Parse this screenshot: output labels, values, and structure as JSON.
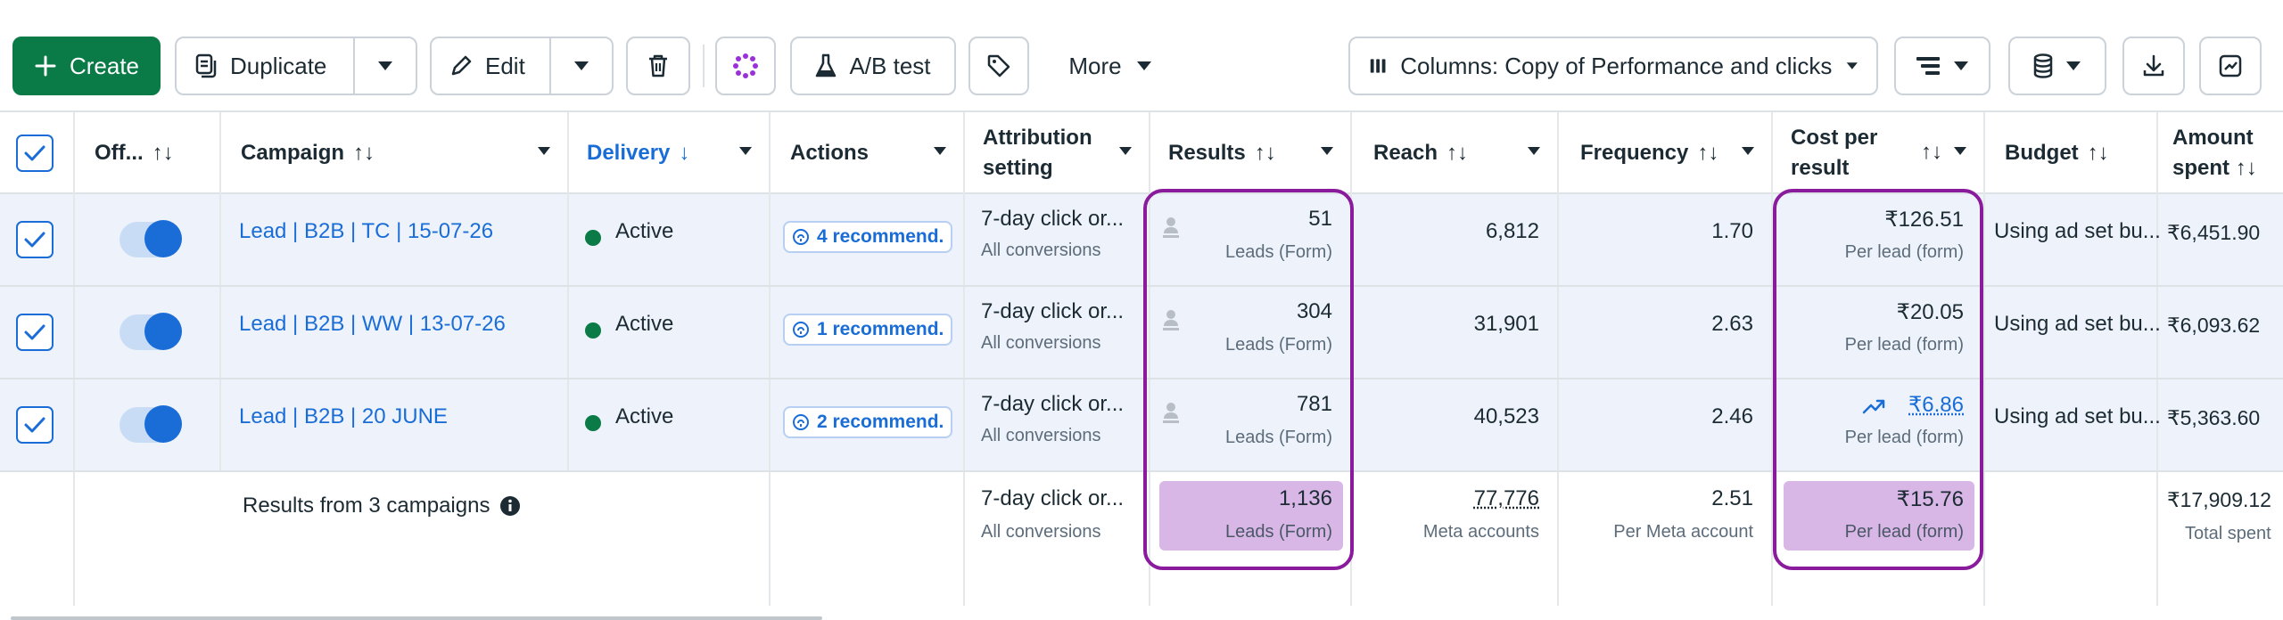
{
  "toolbar": {
    "create_label": "Create",
    "duplicate_label": "Duplicate",
    "edit_label": "Edit",
    "ab_test_label": "A/B test",
    "more_label": "More",
    "columns_label": "Columns: Copy of Performance and clicks"
  },
  "header": {
    "off": "Off...",
    "campaign": "Campaign",
    "delivery": "Delivery",
    "actions": "Actions",
    "attribution_line1": "Attribution",
    "attribution_line2": "setting",
    "results": "Results",
    "reach": "Reach",
    "frequency": "Frequency",
    "cost_line1": "Cost per",
    "cost_line2": "result",
    "budget": "Budget",
    "amount_line1": "Amount",
    "amount_line2": "spent",
    "sort_arrows": "↑↓",
    "delivery_arrow": "↓"
  },
  "rows": [
    {
      "campaign": "Lead | B2B | TC | 15-07-26",
      "delivery": "Active",
      "actions": "4 recommend.",
      "attribution": "7-day click or...",
      "attribution_sub": "All conversions",
      "results": "51",
      "results_sub": "Leads (Form)",
      "reach": "6,812",
      "frequency": "1.70",
      "cost": "₹126.51",
      "cost_sub": "Per lead (form)",
      "budget": "Using ad set bu...",
      "amount": "₹6,451.90"
    },
    {
      "campaign": "Lead | B2B | WW | 13-07-26",
      "delivery": "Active",
      "actions": "1 recommend.",
      "attribution": "7-day click or...",
      "attribution_sub": "All conversions",
      "results": "304",
      "results_sub": "Leads (Form)",
      "reach": "31,901",
      "frequency": "2.63",
      "cost": "₹20.05",
      "cost_sub": "Per lead (form)",
      "budget": "Using ad set bu...",
      "amount": "₹6,093.62"
    },
    {
      "campaign": "Lead | B2B | 20 JUNE",
      "delivery": "Active",
      "actions": "2 recommend.",
      "attribution": "7-day click or...",
      "attribution_sub": "All conversions",
      "results": "781",
      "results_sub": "Leads (Form)",
      "reach": "40,523",
      "frequency": "2.46",
      "cost": "₹6.86",
      "cost_sub": "Per lead (form)",
      "budget": "Using ad set bu...",
      "amount": "₹5,363.60"
    }
  ],
  "summary": {
    "label": "Results from 3 campaigns",
    "attribution": "7-day click or...",
    "attribution_sub": "All conversions",
    "results": "1,136",
    "results_sub": "Leads (Form)",
    "reach": "77,776",
    "reach_sub": "Meta accounts",
    "frequency": "2.51",
    "frequency_sub": "Per Meta account",
    "cost": "₹15.76",
    "cost_sub": "Per lead (form)",
    "amount": "₹17,909.12",
    "amount_sub": "Total spent"
  },
  "colors": {
    "create_green": "#0a7a46",
    "link_blue": "#1a6dd6",
    "highlight_purple": "#d8b7e6",
    "outline_purple": "#8a1b9c"
  }
}
